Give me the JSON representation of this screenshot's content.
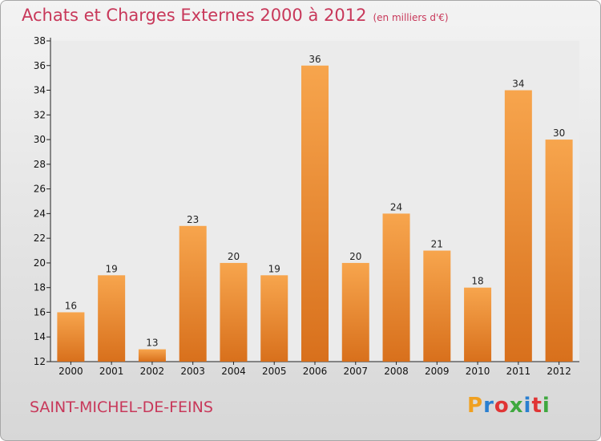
{
  "title": "Achats et Charges Externes 2000 à 2012",
  "subtitle": "(en milliers d'€)",
  "commune": "SAINT-MICHEL-DE-FEINS",
  "logo": {
    "letters": [
      "P",
      "r",
      "o",
      "x",
      "i",
      "t",
      "i"
    ],
    "colors": [
      "#f0a020",
      "#2a7fd0",
      "#e03535",
      "#3fa83f",
      "#2a7fd0",
      "#e03535",
      "#3fa83f"
    ]
  },
  "colors": {
    "bar_top": "#f7a54d",
    "bar_bottom": "#d8701c",
    "title": "#c8385a"
  },
  "chart_data": {
    "type": "bar",
    "categories": [
      "2000",
      "2001",
      "2002",
      "2003",
      "2004",
      "2005",
      "2006",
      "2007",
      "2008",
      "2009",
      "2010",
      "2011",
      "2012"
    ],
    "values": [
      16,
      19,
      13,
      23,
      20,
      19,
      36,
      20,
      24,
      21,
      18,
      34,
      30
    ],
    "ylim": [
      12,
      38
    ],
    "yticks": [
      12,
      14,
      16,
      18,
      20,
      22,
      24,
      26,
      28,
      30,
      32,
      34,
      36,
      38
    ],
    "grid": false,
    "legend": "none"
  }
}
